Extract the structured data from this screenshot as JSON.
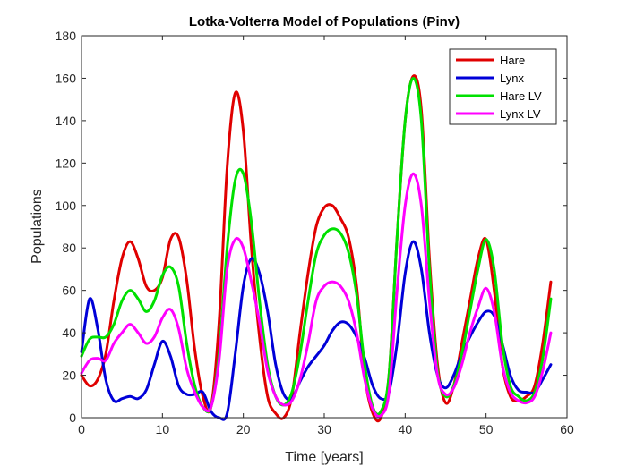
{
  "chart_data": {
    "type": "line",
    "title": "Lotka-Volterra Model of Populations (Pinv)",
    "xlabel": "Time [years]",
    "ylabel": "Populations",
    "xlim": [
      0,
      60
    ],
    "ylim": [
      0,
      180
    ],
    "xticks": [
      0,
      10,
      20,
      30,
      40,
      50,
      60
    ],
    "yticks": [
      0,
      20,
      40,
      60,
      80,
      100,
      120,
      140,
      160,
      180
    ],
    "grid": false,
    "legend_position": "top-right",
    "series": [
      {
        "name": "Hare",
        "color": "#e00000",
        "x": [
          0,
          1,
          2,
          3,
          4,
          5,
          6,
          7,
          8,
          9,
          10,
          11,
          12,
          13,
          14,
          15,
          16,
          17,
          18,
          19,
          20,
          21,
          22,
          23,
          24,
          25,
          26,
          27,
          28,
          29,
          30,
          31,
          32,
          33,
          34,
          35,
          36,
          37,
          38,
          39,
          40,
          41,
          42,
          43,
          44,
          45,
          46,
          47,
          48,
          49,
          50,
          51,
          52,
          53,
          54,
          55,
          56,
          57,
          58
        ],
        "y": [
          20,
          15,
          18,
          30,
          55,
          75,
          83,
          75,
          62,
          60,
          66,
          84,
          85,
          65,
          32,
          10,
          5,
          45,
          118,
          153,
          135,
          80,
          38,
          10,
          2,
          0,
          10,
          40,
          68,
          90,
          99,
          100,
          94,
          85,
          62,
          20,
          2,
          0,
          20,
          85,
          140,
          161,
          145,
          75,
          25,
          7,
          15,
          35,
          55,
          75,
          84,
          60,
          25,
          10,
          8,
          10,
          15,
          35,
          64
        ]
      },
      {
        "name": "Lynx",
        "color": "#0000d8",
        "x": [
          0,
          1,
          2,
          3,
          4,
          5,
          6,
          7,
          8,
          9,
          10,
          11,
          12,
          13,
          14,
          15,
          16,
          17,
          18,
          19,
          20,
          21,
          22,
          23,
          24,
          25,
          26,
          27,
          28,
          29,
          30,
          31,
          32,
          33,
          34,
          35,
          36,
          37,
          38,
          39,
          40,
          41,
          42,
          43,
          44,
          45,
          46,
          47,
          48,
          49,
          50,
          51,
          52,
          53,
          54,
          55,
          56,
          57,
          58
        ],
        "y": [
          31,
          56,
          42,
          18,
          8,
          9,
          10,
          9,
          13,
          25,
          36,
          29,
          15,
          11,
          11,
          12,
          3,
          0,
          2,
          30,
          62,
          75,
          68,
          50,
          25,
          11,
          9,
          17,
          24,
          29,
          34,
          41,
          45,
          44,
          38,
          28,
          15,
          9,
          12,
          35,
          68,
          83,
          70,
          40,
          20,
          14,
          20,
          30,
          38,
          45,
          50,
          48,
          35,
          20,
          13,
          12,
          12,
          18,
          25
        ]
      },
      {
        "name": "Hare LV",
        "color": "#00e000",
        "x": [
          0,
          1,
          2,
          3,
          4,
          5,
          6,
          7,
          8,
          9,
          10,
          11,
          12,
          13,
          14,
          15,
          16,
          17,
          18,
          19,
          20,
          21,
          22,
          23,
          24,
          25,
          26,
          27,
          28,
          29,
          30,
          31,
          32,
          33,
          34,
          35,
          36,
          37,
          38,
          39,
          40,
          41,
          42,
          43,
          44,
          45,
          46,
          47,
          48,
          49,
          50,
          51,
          52,
          53,
          54,
          55,
          56,
          57,
          58
        ],
        "y": [
          29,
          37,
          38,
          38,
          44,
          55,
          60,
          56,
          50,
          55,
          67,
          71,
          62,
          35,
          15,
          5,
          5,
          30,
          80,
          112,
          115,
          92,
          55,
          25,
          10,
          6,
          12,
          30,
          55,
          77,
          86,
          89,
          87,
          78,
          58,
          25,
          5,
          3,
          20,
          85,
          140,
          160,
          140,
          70,
          22,
          10,
          15,
          30,
          50,
          70,
          84,
          70,
          35,
          15,
          10,
          8,
          12,
          28,
          56
        ]
      },
      {
        "name": "Lynx LV",
        "color": "#ff00ff",
        "x": [
          0,
          1,
          2,
          3,
          4,
          5,
          6,
          7,
          8,
          9,
          10,
          11,
          12,
          13,
          14,
          15,
          16,
          17,
          18,
          19,
          20,
          21,
          22,
          23,
          24,
          25,
          26,
          27,
          28,
          29,
          30,
          31,
          32,
          33,
          34,
          35,
          36,
          37,
          38,
          39,
          40,
          41,
          42,
          43,
          44,
          45,
          46,
          47,
          48,
          49,
          50,
          51,
          52,
          53,
          54,
          55,
          56,
          57,
          58
        ],
        "y": [
          21,
          27,
          28,
          27,
          35,
          40,
          44,
          40,
          35,
          38,
          47,
          51,
          42,
          23,
          12,
          5,
          5,
          27,
          70,
          84,
          80,
          64,
          45,
          22,
          10,
          6,
          8,
          18,
          35,
          55,
          62,
          64,
          62,
          55,
          40,
          18,
          4,
          1,
          12,
          60,
          100,
          115,
          100,
          55,
          20,
          11,
          14,
          25,
          40,
          52,
          61,
          50,
          25,
          12,
          8,
          7,
          10,
          22,
          40
        ]
      }
    ]
  }
}
